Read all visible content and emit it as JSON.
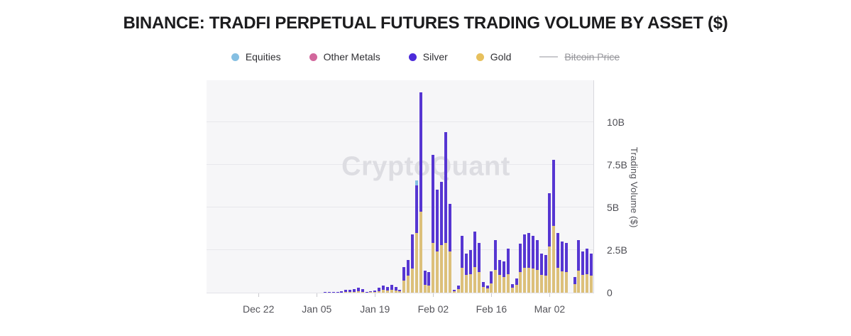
{
  "title": "BINANCE: TRADFI PERPETUAL FUTURES TRADING VOLUME BY ASSET ($)",
  "watermark": "CryptoQuant",
  "legend": [
    {
      "label": "Equities",
      "color": "#85bfe2",
      "type": "dot",
      "disabled": false
    },
    {
      "label": "Other Metals",
      "color": "#d2679c",
      "type": "dot",
      "disabled": false
    },
    {
      "label": "Silver",
      "color": "#4c2bda",
      "type": "dot",
      "disabled": false
    },
    {
      "label": "Gold",
      "color": "#e7c05d",
      "type": "dot",
      "disabled": false
    },
    {
      "label": "Bitcoin Price",
      "color": "#c9c9cd",
      "type": "line",
      "disabled": true
    }
  ],
  "colors": {
    "accent_silver": "#5636d2",
    "accent_gold": "#dcc07a",
    "accent_equities": "#85bfe2",
    "accent_other_metals": "#d2679c",
    "plot_background": "#f6f6f8",
    "gridline": "#e8e8ec",
    "axis_text": "#54545a",
    "watermark_text": "#dddde2"
  },
  "chart_data": {
    "type": "bar",
    "stacked": true,
    "title": "BINANCE: TRADFI PERPETUAL FUTURES TRADING VOLUME BY ASSET ($)",
    "xlabel": "",
    "ylabel": "Trading Volume ($)",
    "unit": "billions of USD",
    "ylim": [
      0,
      12.45
    ],
    "grid": "horizontal",
    "legend_position": "top",
    "hidden_series": [
      "Bitcoin Price"
    ],
    "yticks": [
      {
        "value": 0,
        "label": "0"
      },
      {
        "value": 2.5,
        "label": "2.5B"
      },
      {
        "value": 5,
        "label": "5B"
      },
      {
        "value": 7.5,
        "label": "7.5B"
      },
      {
        "value": 10,
        "label": "10B"
      }
    ],
    "xtick_labels": [
      {
        "index": 12,
        "label": "Dec 22"
      },
      {
        "index": 26,
        "label": "Jan 05"
      },
      {
        "index": 40,
        "label": "Jan 19"
      },
      {
        "index": 54,
        "label": "Feb 02"
      },
      {
        "index": 68,
        "label": "Feb 16"
      },
      {
        "index": 82,
        "label": "Mar 02"
      }
    ],
    "categories": [
      "Dec 10",
      "Dec 11",
      "Dec 12",
      "Dec 13",
      "Dec 14",
      "Dec 15",
      "Dec 16",
      "Dec 17",
      "Dec 18",
      "Dec 19",
      "Dec 20",
      "Dec 21",
      "Dec 22",
      "Dec 23",
      "Dec 24",
      "Dec 25",
      "Dec 26",
      "Dec 27",
      "Dec 28",
      "Dec 29",
      "Dec 30",
      "Dec 31",
      "Jan 01",
      "Jan 02",
      "Jan 03",
      "Jan 04",
      "Jan 05",
      "Jan 06",
      "Jan 07",
      "Jan 08",
      "Jan 09",
      "Jan 10",
      "Jan 11",
      "Jan 12",
      "Jan 13",
      "Jan 14",
      "Jan 15",
      "Jan 16",
      "Jan 17",
      "Jan 18",
      "Jan 19",
      "Jan 20",
      "Jan 21",
      "Jan 22",
      "Jan 23",
      "Jan 24",
      "Jan 25",
      "Jan 26",
      "Jan 27",
      "Jan 28",
      "Jan 29",
      "Jan 30",
      "Jan 31",
      "Feb 01",
      "Feb 02",
      "Feb 03",
      "Feb 04",
      "Feb 05",
      "Feb 06",
      "Feb 07",
      "Feb 08",
      "Feb 09",
      "Feb 10",
      "Feb 11",
      "Feb 12",
      "Feb 13",
      "Feb 14",
      "Feb 15",
      "Feb 16",
      "Feb 17",
      "Feb 18",
      "Feb 19",
      "Feb 20",
      "Feb 21",
      "Feb 22",
      "Feb 23",
      "Feb 24",
      "Feb 25",
      "Feb 26",
      "Feb 27",
      "Feb 28",
      "Mar 01",
      "Mar 02",
      "Mar 03",
      "Mar 04",
      "Mar 05",
      "Mar 06",
      "Mar 07",
      "Mar 08",
      "Mar 09",
      "Mar 10",
      "Mar 11",
      "Mar 12"
    ],
    "series": [
      {
        "name": "Gold",
        "color": "#dcc07a",
        "values": [
          0,
          0,
          0,
          0,
          0,
          0,
          0,
          0,
          0,
          0,
          0,
          0,
          0,
          0,
          0,
          0,
          0,
          0,
          0,
          0,
          0,
          0,
          0,
          0,
          0,
          0,
          0,
          0,
          0.01,
          0.01,
          0.01,
          0.02,
          0.02,
          0.03,
          0.04,
          0.05,
          0.08,
          0.06,
          0.02,
          0.03,
          0.04,
          0.1,
          0.15,
          0.12,
          0.15,
          0.12,
          0.08,
          0.7,
          1.0,
          1.4,
          3.5,
          4.75,
          0.45,
          0.4,
          2.9,
          2.4,
          2.8,
          2.9,
          2.4,
          0.07,
          0.2,
          1.45,
          1.05,
          1.1,
          1.5,
          1.2,
          0.35,
          0.25,
          0.55,
          1.35,
          1.05,
          0.9,
          1.1,
          0.3,
          0.45,
          1.2,
          1.45,
          1.45,
          1.4,
          1.35,
          1.05,
          1.0,
          2.7,
          3.9,
          1.45,
          1.25,
          1.2,
          0,
          0.5,
          1.3,
          1.05,
          1.1,
          1.0
        ]
      },
      {
        "name": "Silver",
        "color": "#5636d2",
        "values": [
          0,
          0,
          0,
          0,
          0,
          0,
          0,
          0,
          0,
          0,
          0,
          0,
          0,
          0,
          0,
          0,
          0,
          0,
          0,
          0,
          0,
          0,
          0,
          0,
          0,
          0,
          0,
          0,
          0.02,
          0.02,
          0.03,
          0.03,
          0.06,
          0.12,
          0.13,
          0.15,
          0.2,
          0.16,
          0.03,
          0.05,
          0.07,
          0.2,
          0.25,
          0.21,
          0.3,
          0.21,
          0.09,
          0.8,
          0.9,
          2.0,
          2.8,
          7.0,
          0.85,
          0.8,
          5.2,
          3.65,
          3.7,
          6.5,
          2.8,
          0.1,
          0.22,
          1.9,
          1.25,
          1.4,
          2.1,
          1.7,
          0.29,
          0.15,
          0.71,
          1.75,
          0.85,
          0.92,
          1.48,
          0.2,
          0.4,
          1.67,
          1.95,
          2.05,
          1.95,
          1.75,
          1.25,
          1.2,
          3.15,
          3.9,
          2.05,
          1.75,
          1.7,
          0,
          0.4,
          1.8,
          1.35,
          1.5,
          1.3
        ]
      },
      {
        "name": "Other Metals",
        "color": "#d2679c",
        "values": [
          0,
          0,
          0,
          0,
          0,
          0,
          0,
          0,
          0,
          0,
          0,
          0,
          0,
          0,
          0,
          0,
          0,
          0,
          0,
          0,
          0,
          0,
          0,
          0,
          0,
          0,
          0,
          0,
          0,
          0,
          0,
          0,
          0,
          0,
          0,
          0,
          0,
          0,
          0,
          0,
          0,
          0,
          0,
          0,
          0,
          0,
          0,
          0,
          0,
          0,
          0,
          0,
          0,
          0,
          0,
          0,
          0,
          0,
          0,
          0,
          0,
          0,
          0,
          0,
          0,
          0,
          0,
          0,
          0,
          0,
          0,
          0,
          0,
          0,
          0,
          0,
          0,
          0,
          0,
          0,
          0,
          0,
          0,
          0,
          0,
          0,
          0,
          0,
          0,
          0,
          0,
          0,
          0
        ]
      },
      {
        "name": "Equities",
        "color": "#85bfe2",
        "values": [
          0,
          0,
          0,
          0,
          0,
          0,
          0,
          0,
          0,
          0,
          0,
          0,
          0,
          0,
          0,
          0,
          0,
          0,
          0,
          0,
          0,
          0,
          0,
          0,
          0,
          0,
          0,
          0,
          0,
          0,
          0,
          0,
          0,
          0,
          0,
          0,
          0,
          0,
          0,
          0,
          0,
          0,
          0,
          0,
          0,
          0,
          0,
          0,
          0,
          0,
          0.3,
          0,
          0,
          0,
          0,
          0,
          0,
          0,
          0,
          0,
          0,
          0,
          0,
          0,
          0,
          0,
          0,
          0,
          0,
          0,
          0,
          0,
          0,
          0,
          0,
          0,
          0,
          0,
          0,
          0,
          0,
          0,
          0,
          0,
          0,
          0,
          0,
          0,
          0,
          0,
          0,
          0,
          0
        ]
      }
    ]
  }
}
